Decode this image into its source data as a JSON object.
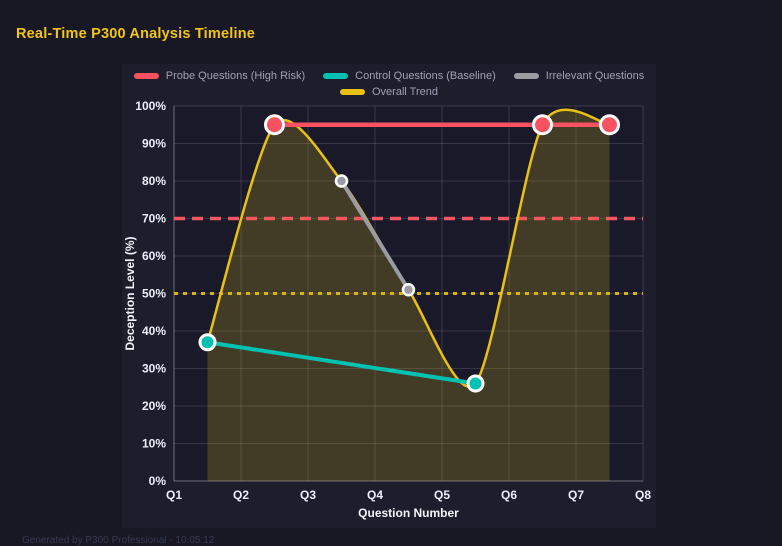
{
  "page": {
    "title": "Real-Time P300 Analysis Timeline",
    "footer": "Generated by P300 Professional - 10:05:12"
  },
  "colors": {
    "page_background": "#181824",
    "panel_background": "#1d1d2c",
    "plot_background": "#19192a",
    "title_yellow": "#f2c415",
    "probe_red": "#f8515f",
    "control_teal": "#00c2b2",
    "irrelevant_gray": "#9b9ba3",
    "trend_yellow": "#e8c114",
    "threshold_red": "#f4555f",
    "threshold_yellow": "#d8b410",
    "grid": "rgba(255,255,255,0.13)",
    "axis_line": "rgba(255,255,255,0.28)"
  },
  "chart_data": {
    "type": "line",
    "title": "Real-Time P300 Analysis Timeline",
    "xlabel": "Question Number",
    "ylabel": "Deception Level (%)",
    "x_tick_labels": [
      "Q1",
      "Q2",
      "Q3",
      "Q4",
      "Q5",
      "Q6",
      "Q7",
      "Q8"
    ],
    "x_range": [
      1,
      8
    ],
    "ylim": [
      0,
      100
    ],
    "y_tick_step": 10,
    "y_tick_suffix": "%",
    "grid": true,
    "legend_position": "top",
    "legend_rows": [
      [
        "Probe Questions (High Risk)",
        "Control Questions (Baseline)",
        "Irrelevant Questions"
      ],
      [
        "Overall Trend"
      ]
    ],
    "series": [
      {
        "name": "Overall Trend",
        "color": "#e8c114",
        "smooth": true,
        "fill": true,
        "fill_color": "rgba(232,193,20,0.20)",
        "line_width": 2.5,
        "point_radius": 0,
        "points": [
          [
            1.5,
            37
          ],
          [
            2.5,
            95
          ],
          [
            3.5,
            80
          ],
          [
            4.5,
            51
          ],
          [
            5.5,
            26
          ],
          [
            6.5,
            95
          ],
          [
            7.5,
            95
          ]
        ]
      },
      {
        "name": "Irrelevant Questions",
        "color": "#9b9ba3",
        "smooth": false,
        "fill": false,
        "line_width": 4,
        "point_radius": 5.5,
        "point_border": 2.5,
        "points": [
          [
            3.5,
            80
          ],
          [
            4.5,
            51
          ]
        ]
      },
      {
        "name": "Control Questions (Baseline)",
        "color": "#00c2b2",
        "smooth": false,
        "fill": false,
        "line_width": 4,
        "point_radius": 7.5,
        "point_border": 3,
        "points": [
          [
            1.5,
            37
          ],
          [
            5.5,
            26
          ]
        ]
      },
      {
        "name": "Probe Questions (High Risk)",
        "color": "#f8515f",
        "smooth": false,
        "fill": false,
        "line_width": 4.5,
        "point_radius": 9,
        "point_border": 3,
        "points": [
          [
            2.5,
            95
          ],
          [
            6.5,
            95
          ],
          [
            7.5,
            95
          ]
        ]
      }
    ],
    "thresholds": [
      {
        "name": "high-risk-threshold",
        "y": 70,
        "color": "#f4555f",
        "dash": "11 7",
        "width": 3.5
      },
      {
        "name": "baseline-threshold",
        "y": 50,
        "color": "#d8b410",
        "dash": "4 5",
        "width": 3
      }
    ]
  }
}
